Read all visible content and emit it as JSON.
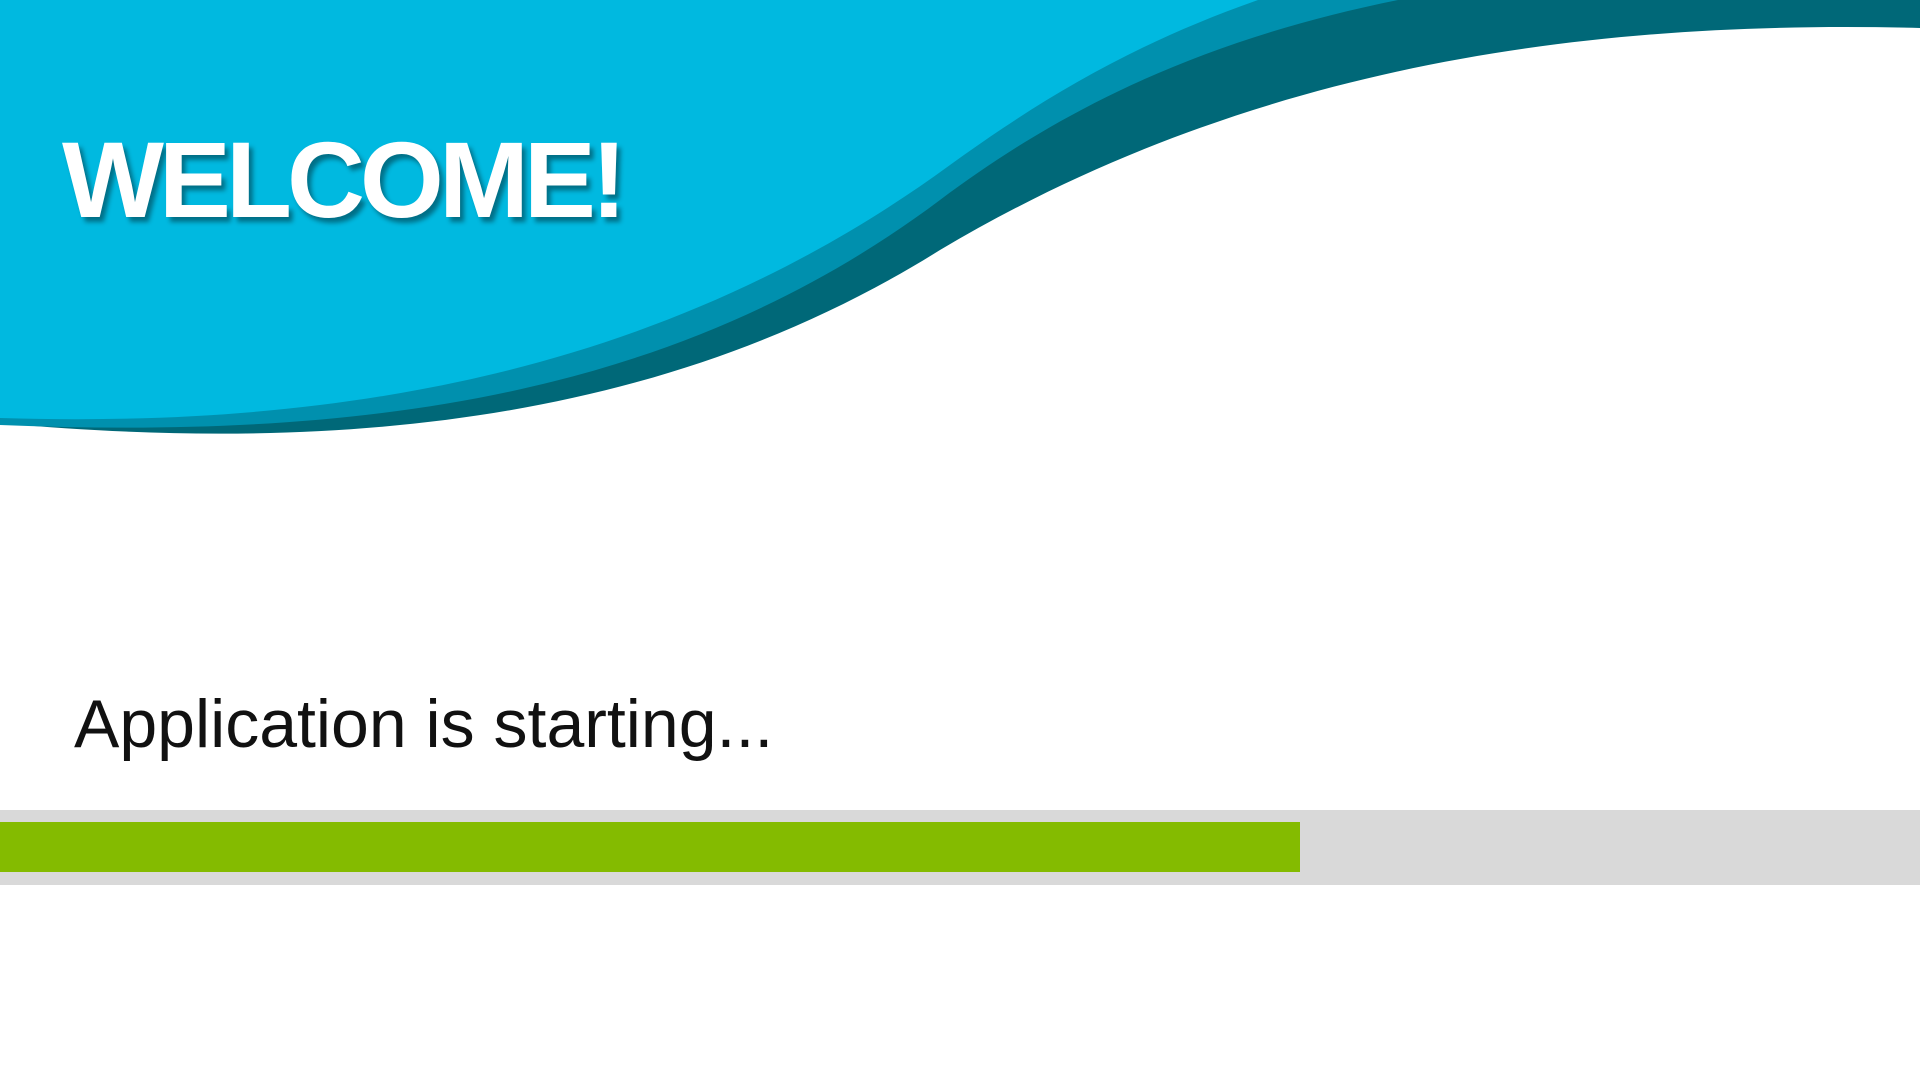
{
  "splash": {
    "title": "WELCOME!",
    "status_text": "Application is starting...",
    "progress_percent": 67.7
  },
  "colors": {
    "primary": "#00B9E0",
    "mid": "#0090AE",
    "dark": "#006878",
    "progress_fill": "#84BB00",
    "progress_track": "#D9D9D9"
  }
}
